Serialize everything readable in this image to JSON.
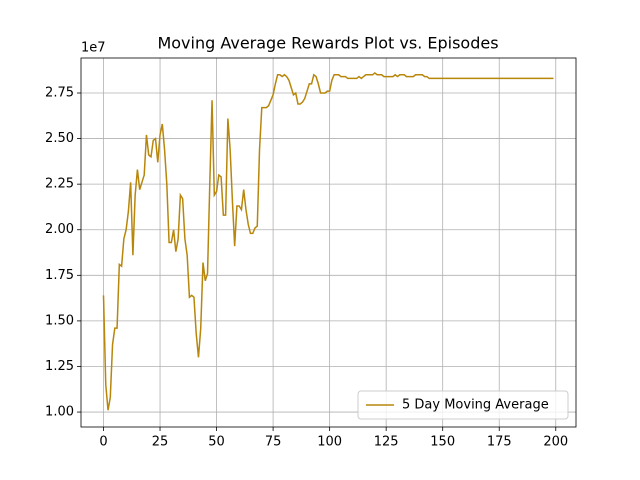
{
  "chart_data": {
    "type": "line",
    "title": "Moving Average Rewards Plot vs. Episodes",
    "y_offset_label": "1e7",
    "x": [
      0,
      1,
      2,
      3,
      4,
      5,
      6,
      7,
      8,
      9,
      10,
      11,
      12,
      13,
      14,
      15,
      16,
      17,
      18,
      19,
      20,
      21,
      22,
      23,
      24,
      25,
      26,
      27,
      28,
      29,
      30,
      31,
      32,
      33,
      34,
      35,
      36,
      37,
      38,
      39,
      40,
      41,
      42,
      43,
      44,
      45,
      46,
      47,
      48,
      49,
      50,
      51,
      52,
      53,
      54,
      55,
      56,
      57,
      58,
      59,
      60,
      61,
      62,
      63,
      64,
      65,
      66,
      67,
      68,
      69,
      70,
      71,
      72,
      73,
      74,
      75,
      76,
      77,
      78,
      79,
      80,
      81,
      82,
      83,
      84,
      85,
      86,
      87,
      88,
      89,
      90,
      91,
      92,
      93,
      94,
      95,
      96,
      97,
      98,
      99,
      100,
      101,
      102,
      103,
      104,
      105,
      106,
      107,
      108,
      109,
      110,
      111,
      112,
      113,
      114,
      115,
      116,
      117,
      118,
      119,
      120,
      121,
      122,
      123,
      124,
      125,
      126,
      127,
      128,
      129,
      130,
      131,
      132,
      133,
      134,
      135,
      136,
      137,
      138,
      139,
      140,
      141,
      142,
      143,
      144,
      145,
      146,
      147,
      148,
      149,
      150,
      151,
      152,
      153,
      154,
      155,
      156,
      157,
      158,
      159,
      160,
      161,
      162,
      163,
      164,
      165,
      166,
      167,
      168,
      169,
      170,
      171,
      172,
      173,
      174,
      175,
      176,
      177,
      178,
      179,
      180,
      181,
      182,
      183,
      184,
      185,
      186,
      187,
      188,
      189,
      190,
      191,
      192,
      193,
      194,
      195,
      196,
      197,
      198,
      199
    ],
    "series": [
      {
        "name": "5 Day Moving Average",
        "color": "#b8860b",
        "values": [
          1.64,
          1.15,
          1.01,
          1.08,
          1.37,
          1.46,
          1.46,
          1.81,
          1.8,
          1.95,
          2.0,
          2.1,
          2.26,
          1.86,
          2.19,
          2.33,
          2.22,
          2.26,
          2.3,
          2.52,
          2.41,
          2.4,
          2.49,
          2.5,
          2.37,
          2.52,
          2.58,
          2.44,
          2.25,
          1.93,
          1.93,
          2.0,
          1.88,
          1.95,
          2.19,
          2.17,
          1.95,
          1.86,
          1.63,
          1.64,
          1.63,
          1.43,
          1.3,
          1.46,
          1.82,
          1.72,
          1.76,
          2.25,
          2.71,
          2.19,
          2.21,
          2.3,
          2.29,
          2.08,
          2.08,
          2.61,
          2.44,
          2.16,
          1.91,
          2.13,
          2.13,
          2.11,
          2.22,
          2.11,
          2.03,
          1.98,
          1.98,
          2.01,
          2.02,
          2.44,
          2.67,
          2.67,
          2.67,
          2.68,
          2.71,
          2.74,
          2.8,
          2.85,
          2.85,
          2.84,
          2.85,
          2.84,
          2.82,
          2.78,
          2.74,
          2.75,
          2.69,
          2.69,
          2.7,
          2.72,
          2.76,
          2.8,
          2.8,
          2.85,
          2.84,
          2.8,
          2.75,
          2.75,
          2.75,
          2.76,
          2.76,
          2.82,
          2.85,
          2.85,
          2.85,
          2.84,
          2.84,
          2.84,
          2.83,
          2.83,
          2.83,
          2.83,
          2.83,
          2.84,
          2.83,
          2.84,
          2.85,
          2.85,
          2.85,
          2.85,
          2.86,
          2.85,
          2.85,
          2.85,
          2.84,
          2.84,
          2.84,
          2.84,
          2.84,
          2.85,
          2.84,
          2.85,
          2.85,
          2.85,
          2.84,
          2.84,
          2.84,
          2.84,
          2.85,
          2.85,
          2.85,
          2.85,
          2.84,
          2.84,
          2.83,
          2.83,
          2.83,
          2.83,
          2.83,
          2.83,
          2.83,
          2.83,
          2.83,
          2.83,
          2.83,
          2.83,
          2.83,
          2.83,
          2.83,
          2.83,
          2.83,
          2.83,
          2.83,
          2.83,
          2.83,
          2.83,
          2.83,
          2.83,
          2.83,
          2.83,
          2.83,
          2.83,
          2.83,
          2.83,
          2.83,
          2.83,
          2.83,
          2.83,
          2.83,
          2.83,
          2.83,
          2.83,
          2.83,
          2.83,
          2.83,
          2.83,
          2.83,
          2.83,
          2.83,
          2.83,
          2.83,
          2.83,
          2.83,
          2.83,
          2.83,
          2.83,
          2.83,
          2.83,
          2.83,
          2.83
        ]
      }
    ],
    "xlim": [
      -9.95,
      208.95
    ],
    "ylim": [
      0.918,
      2.942
    ],
    "xticks": [
      0,
      25,
      50,
      75,
      100,
      125,
      150,
      175,
      200
    ],
    "yticks": [
      {
        "value": 1,
        "label": "1.00"
      },
      {
        "value": 1.25,
        "label": "1.25"
      },
      {
        "value": 1.5,
        "label": "1.50"
      },
      {
        "value": 1.75,
        "label": "1.75"
      },
      {
        "value": 2,
        "label": "2.00"
      },
      {
        "value": 2.25,
        "label": "2.25"
      },
      {
        "value": 2.5,
        "label": "2.50"
      },
      {
        "value": 2.75,
        "label": "2.75"
      }
    ],
    "grid": true,
    "legend": "lower right"
  }
}
